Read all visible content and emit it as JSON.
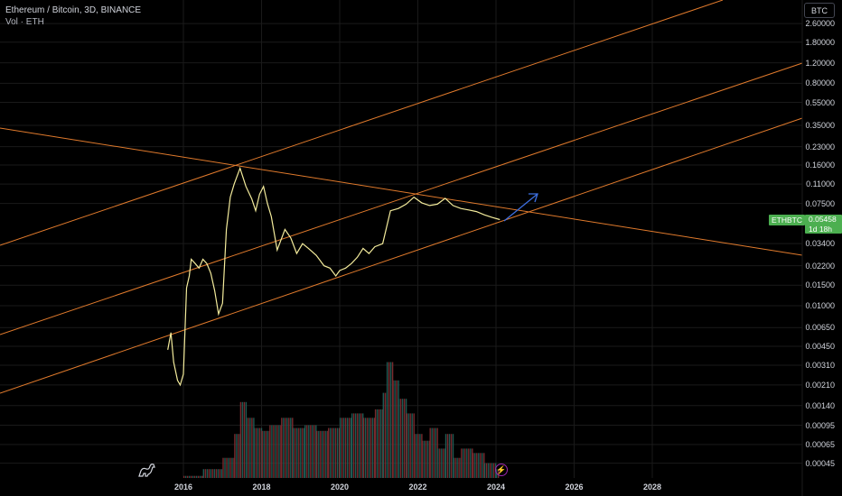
{
  "header": {
    "title": "Ethereum / Bitcoin, 3D, BINANCE",
    "volume": "Vol · ETH"
  },
  "currency_button": "BTC",
  "price_badge": {
    "symbol": "ETHBTC",
    "price": "0.05458",
    "countdown": "1d 18h",
    "color": "#4caf50"
  },
  "colors": {
    "background": "#000000",
    "price_line": "#f4ec9c",
    "trendline": "#e07a2c",
    "arrow": "#3d6fe0",
    "vol_up": "#1f5b54",
    "vol_down": "#7a2a2e",
    "grid": "#1a1a1a"
  },
  "chart_data": {
    "type": "line",
    "scale": "log",
    "y_ticks": [
      "2.60000",
      "1.80000",
      "1.20000",
      "0.80000",
      "0.55000",
      "0.35000",
      "0.23000",
      "0.16000",
      "0.11000",
      "0.07500",
      "0.03400",
      "0.02200",
      "0.01500",
      "0.01000",
      "0.00650",
      "0.00450",
      "0.00310",
      "0.00210",
      "0.00140",
      "0.00095",
      "0.00065",
      "0.00045"
    ],
    "x_ticks": [
      "2016",
      "2018",
      "2020",
      "2022",
      "2024",
      "2026",
      "2028"
    ],
    "price_series": {
      "x": [
        2015.6,
        2015.68,
        2015.75,
        2015.85,
        2015.92,
        2016.0,
        2016.08,
        2016.15,
        2016.2,
        2016.3,
        2016.4,
        2016.5,
        2016.6,
        2016.7,
        2016.8,
        2016.9,
        2017.0,
        2017.1,
        2017.2,
        2017.3,
        2017.45,
        2017.6,
        2017.75,
        2017.85,
        2017.95,
        2018.05,
        2018.15,
        2018.25,
        2018.4,
        2018.6,
        2018.75,
        2018.9,
        2019.05,
        2019.2,
        2019.4,
        2019.6,
        2019.75,
        2019.9,
        2020.0,
        2020.15,
        2020.3,
        2020.45,
        2020.6,
        2020.75,
        2020.9,
        2021.1,
        2021.3,
        2021.5,
        2021.7,
        2021.9,
        2022.1,
        2022.3,
        2022.5,
        2022.7,
        2022.9,
        2023.1,
        2023.3,
        2023.5,
        2023.7,
        2023.9,
        2024.1
      ],
      "y": [
        0.0042,
        0.0059,
        0.0033,
        0.0023,
        0.0021,
        0.0026,
        0.0142,
        0.018,
        0.025,
        0.023,
        0.021,
        0.025,
        0.023,
        0.019,
        0.0135,
        0.0085,
        0.0105,
        0.045,
        0.085,
        0.11,
        0.15,
        0.105,
        0.082,
        0.065,
        0.09,
        0.105,
        0.075,
        0.058,
        0.03,
        0.045,
        0.038,
        0.028,
        0.034,
        0.031,
        0.027,
        0.022,
        0.021,
        0.018,
        0.02,
        0.021,
        0.023,
        0.026,
        0.031,
        0.028,
        0.032,
        0.034,
        0.065,
        0.068,
        0.074,
        0.085,
        0.076,
        0.072,
        0.074,
        0.083,
        0.072,
        0.068,
        0.066,
        0.064,
        0.06,
        0.057,
        0.05458
      ]
    },
    "volume_series": {
      "x": [
        2015.7,
        2016.0,
        2016.5,
        2017.0,
        2017.3,
        2017.45,
        2017.6,
        2017.8,
        2018.0,
        2018.2,
        2018.5,
        2018.8,
        2019.1,
        2019.4,
        2019.7,
        2020.0,
        2020.3,
        2020.6,
        2020.9,
        2021.1,
        2021.2,
        2021.35,
        2021.5,
        2021.7,
        2021.9,
        2022.1,
        2022.3,
        2022.5,
        2022.7,
        2022.9,
        2023.1,
        2023.4,
        2023.7,
        2024.0
      ],
      "y": [
        0.0003,
        0.00035,
        0.0004,
        0.0005,
        0.0008,
        0.0015,
        0.0011,
        0.0009,
        0.00085,
        0.00095,
        0.0011,
        0.0009,
        0.00095,
        0.00085,
        0.0009,
        0.0011,
        0.0012,
        0.0011,
        0.0013,
        0.0018,
        0.0033,
        0.0023,
        0.0016,
        0.0012,
        0.0008,
        0.0007,
        0.0009,
        0.0006,
        0.0008,
        0.0005,
        0.0006,
        0.00055,
        0.00045,
        0.0004
      ]
    }
  }
}
